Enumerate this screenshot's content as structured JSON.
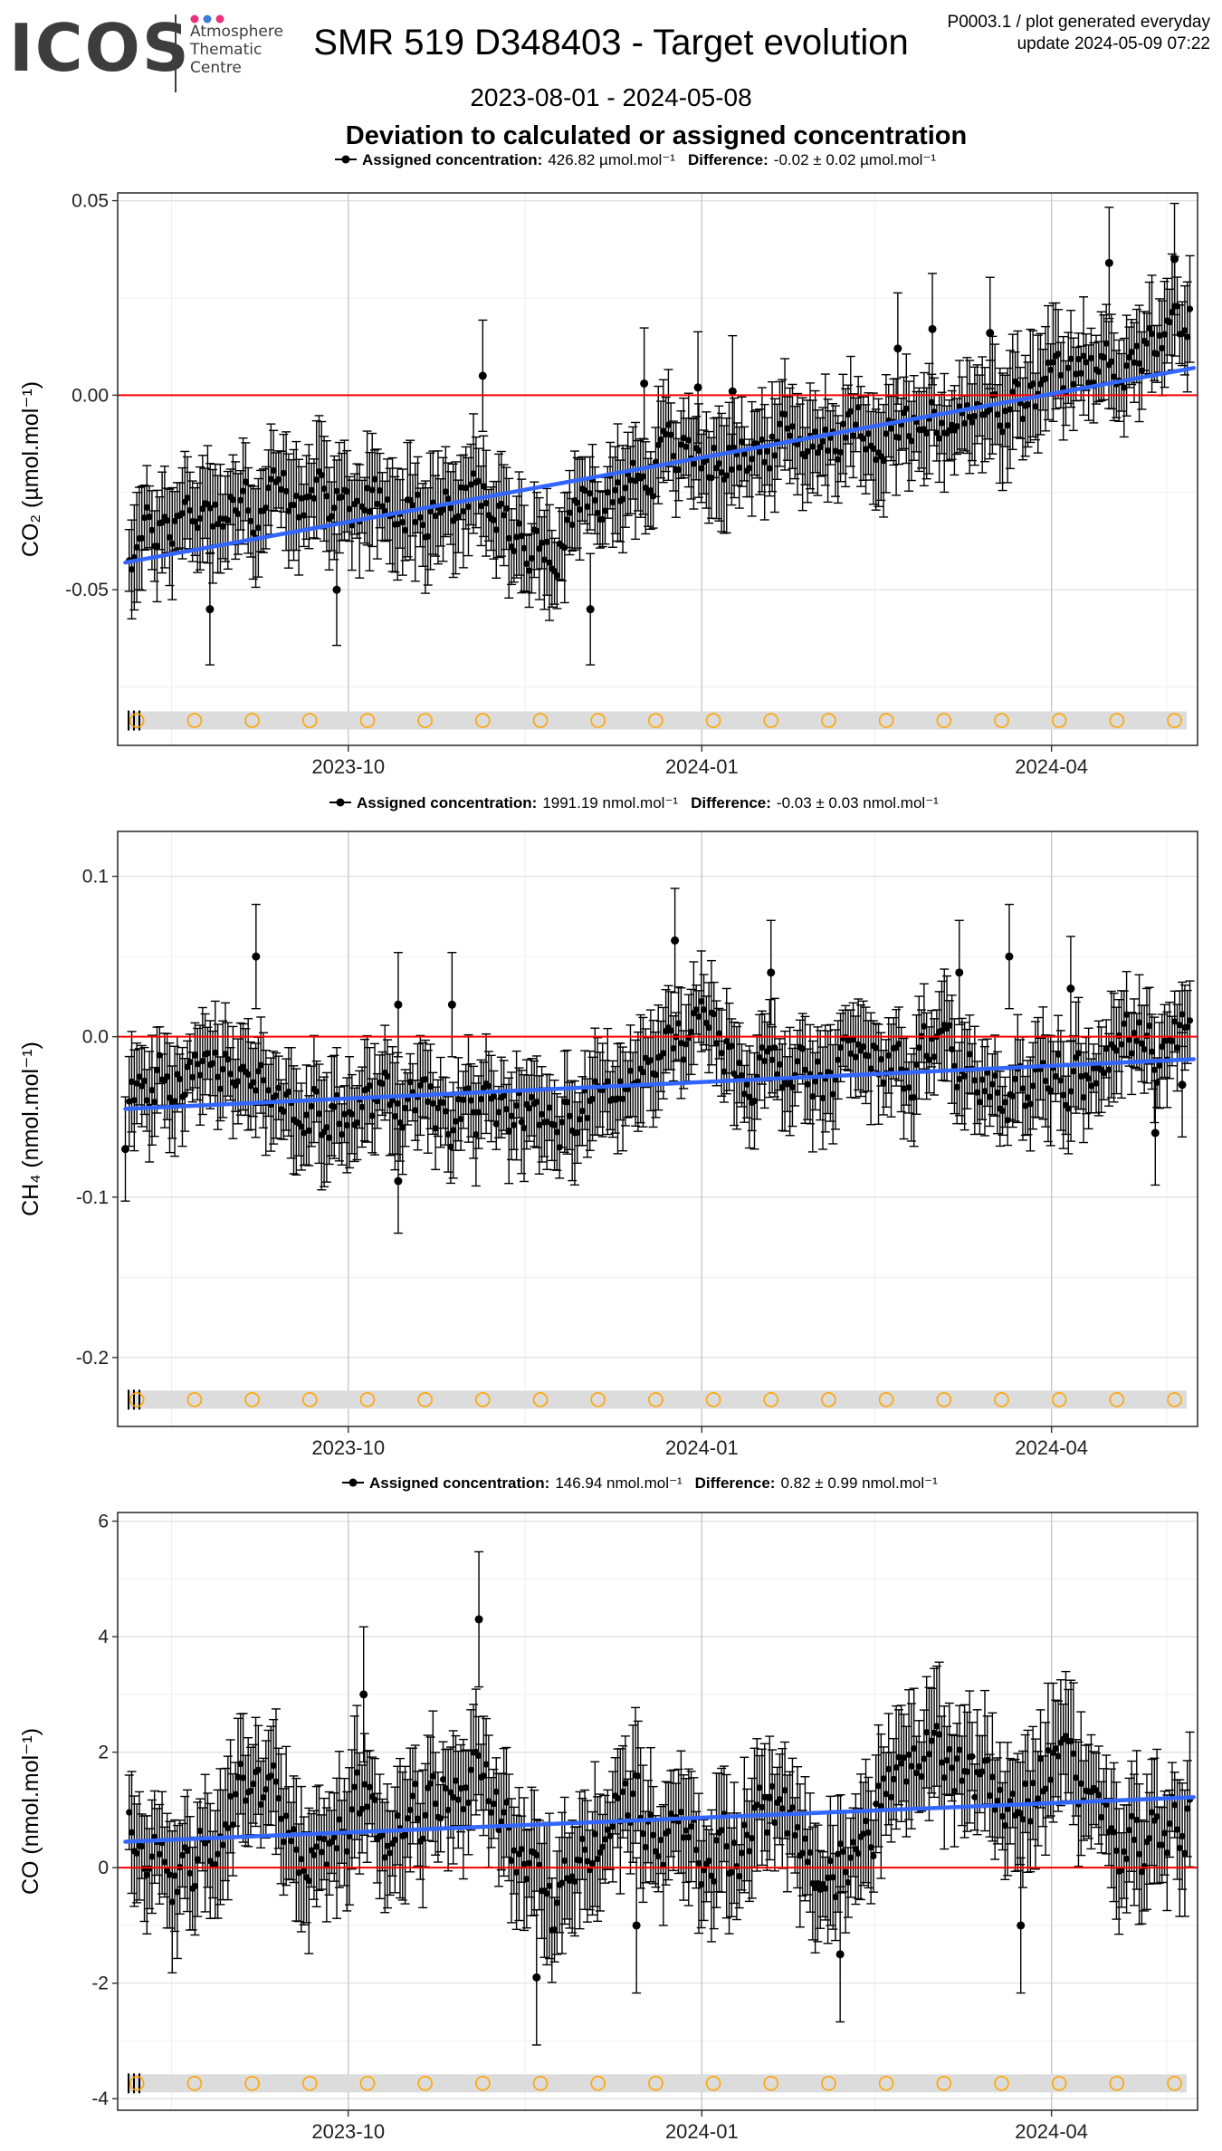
{
  "header": {
    "logo_text": "ICOS",
    "logo_sub": [
      "Atmosphere",
      "Thematic",
      "Centre"
    ],
    "logo_dot_colors": [
      "#e8327c",
      "#3b7dd8",
      "#e8327c"
    ],
    "title": "SMR 519 D348403 - Target evolution",
    "meta_line1": "P0003.1 / plot generated everyday",
    "meta_line2": "update  2024-05-09 07:22",
    "date_range": "2023-08-01 - 2024-05-08",
    "subtitle": "Deviation to calculated or assigned concentration"
  },
  "style": {
    "point_color": "#000000",
    "trend_color": "#3366ff",
    "zero_line_color": "#ff0000",
    "marker_circle_color": "#ffa500",
    "marker_band_color": "#dcdcdc",
    "grid_color": "#ebebeb",
    "grid_major_color": "#c8c8c8"
  },
  "chart_data": [
    {
      "type": "scatter",
      "gas": "CO2",
      "legend_label": "Assigned concentration:",
      "legend_value": "426.82 µmol.mol⁻¹",
      "difference_label": "Difference:",
      "difference_value": "-0.02 ± 0.02 µmol.mol⁻¹",
      "ylabel": "CO₂ (µmol.mol⁻¹)",
      "ylim": [
        -0.09,
        0.052
      ],
      "yticks": [
        0.05,
        0.0,
        -0.05
      ],
      "ytick_labels": [
        "0.05",
        "0.00",
        "-0.05"
      ],
      "xlim": [
        "2023-08-02",
        "2024-05-09"
      ],
      "xticks": [
        "2023-10-01",
        "2024-01-01",
        "2024-04-01"
      ],
      "xtick_labels": [
        "2023-10",
        "2024-01",
        "2024-04"
      ],
      "trend": {
        "x": [
          "2023-08-04",
          "2024-05-08"
        ],
        "y": [
          -0.043,
          0.007
        ]
      },
      "baseline_y": 0.0,
      "series": [
        {
          "values": [
            [
              "2023-08-05",
              -0.04
            ],
            [
              "2023-08-15",
              -0.032
            ],
            [
              "2023-08-25",
              -0.028
            ],
            [
              "2023-09-04",
              -0.03
            ],
            [
              "2023-09-14",
              -0.025
            ],
            [
              "2023-09-24",
              -0.028
            ],
            [
              "2023-10-04",
              -0.027
            ],
            [
              "2023-10-14",
              -0.026
            ],
            [
              "2023-10-24",
              -0.03
            ],
            [
              "2023-11-03",
              -0.025
            ],
            [
              "2023-11-13",
              -0.035
            ],
            [
              "2023-11-23",
              -0.038
            ],
            [
              "2023-12-03",
              -0.028
            ],
            [
              "2023-12-13",
              -0.022
            ],
            [
              "2023-12-23",
              -0.015
            ],
            [
              "2024-01-02",
              -0.016
            ],
            [
              "2024-01-12",
              -0.015
            ],
            [
              "2024-01-22",
              -0.012
            ],
            [
              "2024-02-01",
              -0.01
            ],
            [
              "2024-02-11",
              -0.008
            ],
            [
              "2024-02-21",
              -0.01
            ],
            [
              "2024-03-02",
              -0.008
            ],
            [
              "2024-03-12",
              -0.006
            ],
            [
              "2024-03-22",
              -0.004
            ],
            [
              "2024-04-01",
              0.002
            ],
            [
              "2024-04-11",
              0.006
            ],
            [
              "2024-04-21",
              0.01
            ],
            [
              "2024-05-01",
              0.014
            ],
            [
              "2024-05-07",
              0.02
            ]
          ]
        }
      ],
      "spread": 0.012,
      "err": 0.011,
      "outliers": [
        [
          "2023-11-05",
          0.005
        ],
        [
          "2023-12-17",
          0.003
        ],
        [
          "2023-12-31",
          0.002
        ],
        [
          "2024-01-09",
          0.001
        ],
        [
          "2024-03-01",
          0.017
        ],
        [
          "2024-03-16",
          0.016
        ],
        [
          "2024-04-16",
          0.034
        ],
        [
          "2024-05-03",
          0.035
        ],
        [
          "2024-02-21",
          0.012
        ],
        [
          "2023-08-26",
          -0.055
        ],
        [
          "2023-12-03",
          -0.055
        ],
        [
          "2023-09-28",
          -0.05
        ]
      ],
      "markers": [
        "2023-08-07",
        "2023-08-22",
        "2023-09-06",
        "2023-09-21",
        "2023-10-06",
        "2023-10-21",
        "2023-11-05",
        "2023-11-20",
        "2023-12-05",
        "2023-12-20",
        "2024-01-04",
        "2024-01-19",
        "2024-02-03",
        "2024-02-18",
        "2024-03-04",
        "2024-03-19",
        "2024-04-03",
        "2024-04-18",
        "2024-05-03"
      ]
    },
    {
      "type": "scatter",
      "gas": "CH4",
      "legend_label": "Assigned concentration:",
      "legend_value": "1991.19 nmol.mol⁻¹",
      "difference_label": "Difference:",
      "difference_value": "-0.03 ± 0.03 nmol.mol⁻¹",
      "ylabel": "CH₄ (nmol.mol⁻¹)",
      "ylim": [
        -0.243,
        0.128
      ],
      "yticks": [
        0.1,
        0.0,
        -0.1,
        -0.2
      ],
      "ytick_labels": [
        "0.1",
        "0.0",
        "-0.1",
        "-0.2"
      ],
      "xlim": [
        "2023-08-02",
        "2024-05-09"
      ],
      "xticks": [
        "2023-10-01",
        "2024-01-01",
        "2024-04-01"
      ],
      "xtick_labels": [
        "2023-10",
        "2024-01",
        "2024-04"
      ],
      "trend": {
        "x": [
          "2023-08-04",
          "2024-05-08"
        ],
        "y": [
          -0.045,
          -0.014
        ]
      },
      "baseline_y": 0.0,
      "series": [
        {
          "values": [
            [
              "2023-08-05",
              -0.03
            ],
            [
              "2023-08-15",
              -0.025
            ],
            [
              "2023-08-25",
              -0.02
            ],
            [
              "2023-09-04",
              -0.03
            ],
            [
              "2023-09-14",
              -0.04
            ],
            [
              "2023-09-24",
              -0.05
            ],
            [
              "2023-10-04",
              -0.045
            ],
            [
              "2023-10-14",
              -0.04
            ],
            [
              "2023-10-24",
              -0.05
            ],
            [
              "2023-11-03",
              -0.05
            ],
            [
              "2023-11-13",
              -0.045
            ],
            [
              "2023-11-23",
              -0.055
            ],
            [
              "2023-12-03",
              -0.045
            ],
            [
              "2023-12-13",
              -0.03
            ],
            [
              "2023-12-23",
              -0.01
            ],
            [
              "2024-01-02",
              0.01
            ],
            [
              "2024-01-12",
              -0.02
            ],
            [
              "2024-01-22",
              -0.02
            ],
            [
              "2024-02-01",
              -0.03
            ],
            [
              "2024-02-11",
              -0.01
            ],
            [
              "2024-02-21",
              -0.02
            ],
            [
              "2024-03-02",
              -0.01
            ],
            [
              "2024-03-12",
              -0.03
            ],
            [
              "2024-03-22",
              -0.04
            ],
            [
              "2024-04-01",
              -0.02
            ],
            [
              "2024-04-11",
              -0.03
            ],
            [
              "2024-04-21",
              0.0
            ],
            [
              "2024-05-01",
              -0.01
            ],
            [
              "2024-05-07",
              0.0
            ]
          ]
        }
      ],
      "spread": 0.03,
      "err": 0.025,
      "outliers": [
        [
          "2023-09-07",
          0.05
        ],
        [
          "2023-10-14",
          0.02
        ],
        [
          "2023-10-28",
          0.02
        ],
        [
          "2023-12-25",
          0.06
        ],
        [
          "2024-01-19",
          0.04
        ],
        [
          "2024-03-08",
          0.04
        ],
        [
          "2024-03-21",
          0.05
        ],
        [
          "2024-04-06",
          0.03
        ],
        [
          "2024-04-28",
          -0.06
        ],
        [
          "2024-05-05",
          -0.03
        ],
        [
          "2023-08-04",
          -0.07
        ],
        [
          "2023-10-14",
          -0.09
        ]
      ],
      "markers": [
        "2023-08-07",
        "2023-08-22",
        "2023-09-06",
        "2023-09-21",
        "2023-10-06",
        "2023-10-21",
        "2023-11-05",
        "2023-11-20",
        "2023-12-05",
        "2023-12-20",
        "2024-01-04",
        "2024-01-19",
        "2024-02-03",
        "2024-02-18",
        "2024-03-04",
        "2024-03-19",
        "2024-04-03",
        "2024-04-18",
        "2024-05-03"
      ]
    },
    {
      "type": "scatter",
      "gas": "CO",
      "legend_label": "Assigned concentration:",
      "legend_value": "146.94 nmol.mol⁻¹",
      "difference_label": "Difference:",
      "difference_value": "0.82 ± 0.99 nmol.mol⁻¹",
      "ylabel": "CO (nmol.mol⁻¹)",
      "ylim": [
        -4.2,
        6.15
      ],
      "yticks": [
        6,
        4,
        2,
        0,
        -2,
        -4
      ],
      "ytick_labels": [
        "6",
        "4",
        "2",
        "0",
        "-2",
        "-4"
      ],
      "xlim": [
        "2023-08-02",
        "2024-05-09"
      ],
      "xticks": [
        "2023-10-01",
        "2024-01-01",
        "2024-04-01"
      ],
      "xtick_labels": [
        "2023-10",
        "2024-01",
        "2024-04"
      ],
      "trend": {
        "x": [
          "2023-08-04",
          "2024-05-08"
        ],
        "y": [
          0.45,
          1.22
        ]
      },
      "baseline_y": 0.0,
      "series": [
        {
          "values": [
            [
              "2023-08-05",
              0.5
            ],
            [
              "2023-08-15",
              -0.2
            ],
            [
              "2023-08-25",
              0.3
            ],
            [
              "2023-09-04",
              1.5
            ],
            [
              "2023-09-14",
              0.8
            ],
            [
              "2023-09-24",
              0.2
            ],
            [
              "2023-10-04",
              1.0
            ],
            [
              "2023-10-14",
              0.5
            ],
            [
              "2023-10-24",
              1.2
            ],
            [
              "2023-11-03",
              1.8
            ],
            [
              "2023-11-13",
              0.5
            ],
            [
              "2023-11-23",
              -1.0
            ],
            [
              "2023-12-03",
              0.3
            ],
            [
              "2023-12-13",
              1.2
            ],
            [
              "2023-12-23",
              0.5
            ],
            [
              "2024-01-02",
              0.2
            ],
            [
              "2024-01-12",
              0.5
            ],
            [
              "2024-01-22",
              1.0
            ],
            [
              "2024-02-01",
              -0.5
            ],
            [
              "2024-02-11",
              0.8
            ],
            [
              "2024-02-21",
              1.5
            ],
            [
              "2024-03-02",
              2.0
            ],
            [
              "2024-03-12",
              1.5
            ],
            [
              "2024-03-22",
              1.0
            ],
            [
              "2024-04-01",
              1.8
            ],
            [
              "2024-04-11",
              0.8
            ],
            [
              "2024-04-21",
              0.2
            ],
            [
              "2024-05-01",
              0.8
            ],
            [
              "2024-05-07",
              1.0
            ]
          ]
        }
      ],
      "spread": 1.1,
      "err": 0.9,
      "outliers": [
        [
          "2023-11-04",
          4.3
        ],
        [
          "2023-10-05",
          3.0
        ],
        [
          "2023-11-19",
          -1.9
        ],
        [
          "2023-12-15",
          -1.0
        ],
        [
          "2024-02-06",
          -1.5
        ],
        [
          "2024-03-24",
          -1.0
        ]
      ],
      "markers": [
        "2023-08-07",
        "2023-08-22",
        "2023-09-06",
        "2023-09-21",
        "2023-10-06",
        "2023-10-21",
        "2023-11-05",
        "2023-11-20",
        "2023-12-05",
        "2023-12-20",
        "2024-01-04",
        "2024-01-19",
        "2024-02-03",
        "2024-02-18",
        "2024-03-04",
        "2024-03-19",
        "2024-04-03",
        "2024-04-18",
        "2024-05-03"
      ]
    }
  ]
}
